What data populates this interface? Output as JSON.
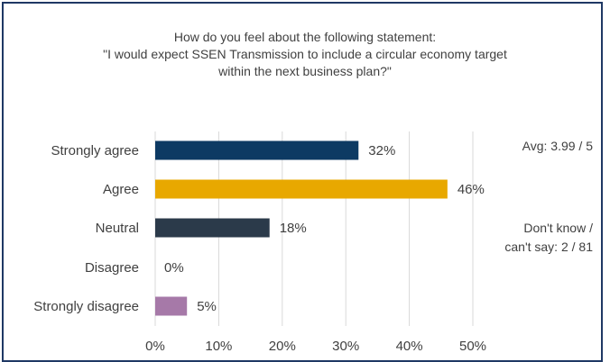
{
  "chart_data": {
    "type": "bar",
    "orientation": "horizontal",
    "title_lines": [
      "How do you feel about the following statement:",
      "\"I would expect SSEN Transmission to include a circular economy target",
      "within the next business plan?\""
    ],
    "categories": [
      "Strongly agree",
      "Agree",
      "Neutral",
      "Disagree",
      "Strongly disagree"
    ],
    "values": [
      32,
      46,
      18,
      0,
      5
    ],
    "value_labels": [
      "32%",
      "46%",
      "18%",
      "0%",
      "5%"
    ],
    "colors": [
      "#0d3a63",
      "#e8a800",
      "#2b3a4a",
      "#d9d9d9",
      "#a679a8"
    ],
    "xlim": [
      0,
      50
    ],
    "x_ticks": [
      0,
      10,
      20,
      30,
      40,
      50
    ],
    "x_tick_labels": [
      "0%",
      "10%",
      "20%",
      "30%",
      "40%",
      "50%"
    ],
    "grid": true,
    "annotations": {
      "average": "Avg: 3.99 / 5",
      "dont_know_line1": "Don't know /",
      "dont_know_line2": "can't say: 2 / 81"
    }
  }
}
